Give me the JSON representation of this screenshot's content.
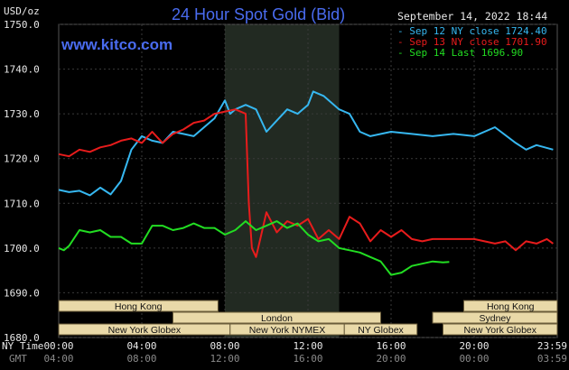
{
  "header": {
    "title": "24 Hour Spot Gold (Bid)",
    "site": "www.kitco.com",
    "date": "September 14, 2022 18:44",
    "unit": "USD/oz"
  },
  "legend": [
    {
      "label": "Sep 12 NY close 1724.40",
      "color": "#36b7f0"
    },
    {
      "label": "Sep 13 NY close 1701.90",
      "color": "#e81c1c"
    },
    {
      "label": "Sep 14 Last 1696.90",
      "color": "#22dd22"
    }
  ],
  "sessions": [
    {
      "name": "Hong Kong",
      "row": 0,
      "start_h": 0,
      "end_h": 7.67
    },
    {
      "name": "London",
      "row": 1,
      "start_h": 5.5,
      "end_h": 15.5
    },
    {
      "name": "New York Globex",
      "row": 2,
      "start_h": 0,
      "end_h": 8.25
    },
    {
      "name": "New York NYMEX",
      "row": 2,
      "start_h": 8.25,
      "end_h": 13.75
    },
    {
      "name": "NY Globex",
      "row": 2,
      "start_h": 13.75,
      "end_h": 17.25
    },
    {
      "name": "Hong Kong",
      "row": 0,
      "start_h": 19.5,
      "end_h": 24
    },
    {
      "name": "Sydney",
      "row": 1,
      "start_h": 18,
      "end_h": 24
    },
    {
      "name": "New York Globex",
      "row": 2,
      "start_h": 18.5,
      "end_h": 24
    }
  ],
  "time_axis": {
    "ny_label": "NY Time",
    "gmt_label": "GMT",
    "ny_ticks": [
      "00:00",
      "04:00",
      "08:00",
      "12:00",
      "16:00",
      "20:00",
      "23:59"
    ],
    "gmt_ticks": [
      "04:00",
      "08:00",
      "12:00",
      "16:00",
      "20:00",
      "00:00",
      "03:59"
    ]
  },
  "chart_data": {
    "type": "line",
    "title": "24 Hour Spot Gold (Bid)",
    "ylabel": "USD/oz",
    "xlabel": "NY Time",
    "ylim": [
      1680,
      1750
    ],
    "xlim": [
      0,
      24
    ],
    "yticks": [
      "1680.0",
      "1690.0",
      "1700.0",
      "1710.0",
      "1720.0",
      "1730.0",
      "1740.0",
      "1750.0"
    ],
    "ytick_values": [
      1680,
      1690,
      1700,
      1710,
      1720,
      1730,
      1740,
      1750
    ],
    "grid": true,
    "highlight_x_range": [
      8,
      13.5
    ],
    "series": [
      {
        "name": "Sep 12 NY close 1724.40",
        "color": "#36b7f0",
        "points": [
          [
            0,
            1713.0
          ],
          [
            0.5,
            1712.5
          ],
          [
            1.0,
            1712.8
          ],
          [
            1.5,
            1711.8
          ],
          [
            2.0,
            1713.5
          ],
          [
            2.5,
            1712.0
          ],
          [
            3.0,
            1715.0
          ],
          [
            3.5,
            1722.0
          ],
          [
            4.0,
            1725.0
          ],
          [
            4.5,
            1724.0
          ],
          [
            5.0,
            1723.5
          ],
          [
            5.5,
            1726.0
          ],
          [
            6.0,
            1725.5
          ],
          [
            6.5,
            1725.0
          ],
          [
            7.0,
            1727.0
          ],
          [
            7.5,
            1729.0
          ],
          [
            8.0,
            1733.0
          ],
          [
            8.25,
            1730.0
          ],
          [
            8.5,
            1731.0
          ],
          [
            9.0,
            1732.0
          ],
          [
            9.5,
            1731.0
          ],
          [
            10.0,
            1726.0
          ],
          [
            10.5,
            1728.5
          ],
          [
            11.0,
            1731.0
          ],
          [
            11.5,
            1730.0
          ],
          [
            12.0,
            1732.0
          ],
          [
            12.25,
            1735.0
          ],
          [
            12.75,
            1734.0
          ],
          [
            13.0,
            1733.0
          ],
          [
            13.5,
            1731.0
          ],
          [
            14.0,
            1730.0
          ],
          [
            14.5,
            1726.0
          ],
          [
            15.0,
            1725.0
          ],
          [
            16.0,
            1726.0
          ],
          [
            17.0,
            1725.5
          ],
          [
            18.0,
            1725.0
          ],
          [
            19.0,
            1725.5
          ],
          [
            20.0,
            1725.0
          ],
          [
            21.0,
            1727.0
          ],
          [
            22.0,
            1723.5
          ],
          [
            22.5,
            1722.0
          ],
          [
            23.0,
            1723.0
          ],
          [
            23.8,
            1722.0
          ]
        ]
      },
      {
        "name": "Sep 13 NY close 1701.90",
        "color": "#e81c1c",
        "points": [
          [
            0,
            1721.0
          ],
          [
            0.5,
            1720.5
          ],
          [
            1.0,
            1722.0
          ],
          [
            1.5,
            1721.5
          ],
          [
            2.0,
            1722.5
          ],
          [
            2.5,
            1723.0
          ],
          [
            3.0,
            1724.0
          ],
          [
            3.5,
            1724.5
          ],
          [
            4.0,
            1723.5
          ],
          [
            4.5,
            1726.0
          ],
          [
            5.0,
            1723.5
          ],
          [
            5.5,
            1725.5
          ],
          [
            6.0,
            1726.5
          ],
          [
            6.5,
            1728.0
          ],
          [
            7.0,
            1728.5
          ],
          [
            7.5,
            1730.0
          ],
          [
            8.0,
            1730.5
          ],
          [
            8.5,
            1731.0
          ],
          [
            9.0,
            1730.0
          ],
          [
            9.15,
            1710.0
          ],
          [
            9.3,
            1700.0
          ],
          [
            9.5,
            1698.0
          ],
          [
            9.75,
            1703.0
          ],
          [
            10.0,
            1708.0
          ],
          [
            10.5,
            1703.5
          ],
          [
            11.0,
            1706.0
          ],
          [
            11.5,
            1705.0
          ],
          [
            12.0,
            1706.5
          ],
          [
            12.5,
            1702.0
          ],
          [
            13.0,
            1704.0
          ],
          [
            13.5,
            1702.0
          ],
          [
            14.0,
            1707.0
          ],
          [
            14.5,
            1705.5
          ],
          [
            15.0,
            1701.5
          ],
          [
            15.5,
            1704.0
          ],
          [
            16.0,
            1702.5
          ],
          [
            16.5,
            1704.0
          ],
          [
            17.0,
            1702.0
          ],
          [
            17.5,
            1701.5
          ],
          [
            18.0,
            1702.0
          ],
          [
            19.0,
            1702.0
          ],
          [
            20.0,
            1702.0
          ],
          [
            20.5,
            1701.5
          ],
          [
            21.0,
            1701.0
          ],
          [
            21.5,
            1701.5
          ],
          [
            22.0,
            1699.5
          ],
          [
            22.5,
            1701.5
          ],
          [
            23.0,
            1701.0
          ],
          [
            23.5,
            1702.0
          ],
          [
            23.8,
            1701.0
          ]
        ]
      },
      {
        "name": "Sep 14 Last 1696.90",
        "color": "#22dd22",
        "points": [
          [
            0,
            1700.0
          ],
          [
            0.25,
            1699.5
          ],
          [
            0.5,
            1700.5
          ],
          [
            1.0,
            1704.0
          ],
          [
            1.5,
            1703.5
          ],
          [
            2.0,
            1704.0
          ],
          [
            2.5,
            1702.5
          ],
          [
            3.0,
            1702.5
          ],
          [
            3.5,
            1701.0
          ],
          [
            4.0,
            1701.0
          ],
          [
            4.5,
            1705.0
          ],
          [
            5.0,
            1705.0
          ],
          [
            5.5,
            1704.0
          ],
          [
            6.0,
            1704.5
          ],
          [
            6.5,
            1705.5
          ],
          [
            7.0,
            1704.5
          ],
          [
            7.5,
            1704.5
          ],
          [
            8.0,
            1703.0
          ],
          [
            8.5,
            1704.0
          ],
          [
            9.0,
            1706.0
          ],
          [
            9.5,
            1704.0
          ],
          [
            10.0,
            1705.0
          ],
          [
            10.5,
            1706.0
          ],
          [
            11.0,
            1704.5
          ],
          [
            11.5,
            1705.5
          ],
          [
            12.0,
            1703.0
          ],
          [
            12.5,
            1701.5
          ],
          [
            13.0,
            1702.0
          ],
          [
            13.5,
            1700.0
          ],
          [
            14.0,
            1699.5
          ],
          [
            14.5,
            1699.0
          ],
          [
            15.0,
            1698.0
          ],
          [
            15.5,
            1697.0
          ],
          [
            16.0,
            1694.0
          ],
          [
            16.5,
            1694.5
          ],
          [
            17.0,
            1696.0
          ],
          [
            17.5,
            1696.5
          ],
          [
            18.0,
            1697.0
          ],
          [
            18.5,
            1696.8
          ],
          [
            18.8,
            1696.9
          ]
        ]
      }
    ]
  }
}
